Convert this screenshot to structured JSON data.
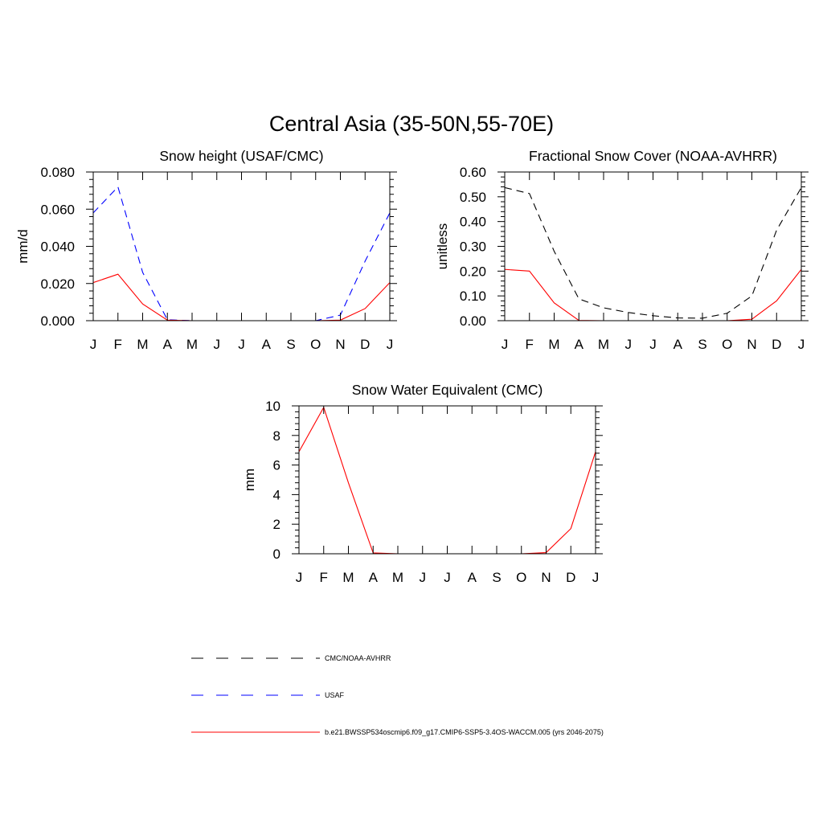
{
  "figure": {
    "title": "Central Asia (35-50N,55-70E)"
  },
  "chart_data": [
    {
      "type": "line",
      "title": "Snow height (USAF/CMC)",
      "xlabel": "",
      "ylabel": "mm/d",
      "categories": [
        "J",
        "F",
        "M",
        "A",
        "M",
        "J",
        "J",
        "A",
        "S",
        "O",
        "N",
        "D",
        "J"
      ],
      "yticks": [
        "0.000",
        "0.020",
        "0.040",
        "0.060",
        "0.080"
      ],
      "ylim": [
        0,
        0.08
      ],
      "grid": false,
      "series": [
        {
          "name": "CMC/NOAA-AVHRR",
          "color": "#000000",
          "dash": "dashed",
          "values": [
            0,
            0,
            0,
            0,
            0,
            0,
            0,
            0,
            0,
            0,
            0,
            0,
            0
          ]
        },
        {
          "name": "USAF",
          "color": "#0000ff",
          "dash": "dashed",
          "values": [
            0.058,
            0.072,
            0.026,
            0.0005,
            0,
            0,
            0,
            0,
            0,
            0,
            0.003,
            0.032,
            0.058
          ]
        },
        {
          "name": "b.e21.BWSSP534oscmip6.f09_g17.CMIP6-SSP5-3.4OS-WACCM.005 (yrs 2046-2075)",
          "color": "#ff0000",
          "dash": "solid",
          "values": [
            0.0205,
            0.025,
            0.009,
            0.0003,
            0,
            0,
            0,
            0,
            0,
            0,
            0.0003,
            0.0065,
            0.0205
          ]
        }
      ]
    },
    {
      "type": "line",
      "title": "Fractional Snow Cover (NOAA-AVHRR)",
      "xlabel": "",
      "ylabel": "unitless",
      "categories": [
        "J",
        "F",
        "M",
        "A",
        "M",
        "J",
        "J",
        "A",
        "S",
        "O",
        "N",
        "D",
        "J"
      ],
      "yticks": [
        "0.00",
        "0.10",
        "0.20",
        "0.30",
        "0.40",
        "0.50",
        "0.60"
      ],
      "ylim": [
        0,
        0.6
      ],
      "grid": false,
      "series": [
        {
          "name": "CMC/NOAA-AVHRR",
          "color": "#000000",
          "dash": "dashed",
          "values": [
            0.537,
            0.513,
            0.28,
            0.088,
            0.052,
            0.033,
            0.02,
            0.011,
            0.01,
            0.03,
            0.1,
            0.365,
            0.537
          ]
        },
        {
          "name": "b.e21.BWSSP534oscmip6.f09_g17.CMIP6-SSP5-3.4OS-WACCM.005 (yrs 2046-2075)",
          "color": "#ff0000",
          "dash": "solid",
          "values": [
            0.207,
            0.2,
            0.072,
            0.001,
            0,
            0,
            0,
            0,
            0,
            0,
            0.006,
            0.08,
            0.207
          ]
        }
      ]
    },
    {
      "type": "line",
      "title": "Snow Water Equivalent (CMC)",
      "xlabel": "",
      "ylabel": "mm",
      "categories": [
        "J",
        "F",
        "M",
        "A",
        "M",
        "J",
        "J",
        "A",
        "S",
        "O",
        "N",
        "D",
        "J"
      ],
      "yticks": [
        "0",
        "2",
        "4",
        "6",
        "8",
        "10"
      ],
      "ylim": [
        0,
        10
      ],
      "grid": false,
      "series": [
        {
          "name": "CMC/NOAA-AVHRR",
          "color": "#000000",
          "dash": "dashed",
          "values": [
            0,
            0,
            0,
            0,
            0,
            0,
            0,
            0,
            0,
            0,
            0,
            0,
            0
          ]
        },
        {
          "name": "b.e21.BWSSP534oscmip6.f09_g17.CMIP6-SSP5-3.4OS-WACCM.005 (yrs 2046-2075)",
          "color": "#ff0000",
          "dash": "solid",
          "values": [
            6.9,
            9.9,
            4.8,
            0.06,
            0,
            0,
            0,
            0,
            0,
            0,
            0.08,
            1.7,
            6.9
          ]
        }
      ]
    }
  ],
  "legend": {
    "placement": "bottom",
    "items": [
      {
        "label": "CMC/NOAA-AVHRR",
        "color": "#000000",
        "dash": "dashed"
      },
      {
        "label": "USAF",
        "color": "#0000ff",
        "dash": "dashed"
      },
      {
        "label": "b.e21.BWSSP534oscmip6.f09_g17.CMIP6-SSP5-3.4OS-WACCM.005 (yrs 2046-2075)",
        "color": "#ff0000",
        "dash": "solid"
      }
    ]
  }
}
